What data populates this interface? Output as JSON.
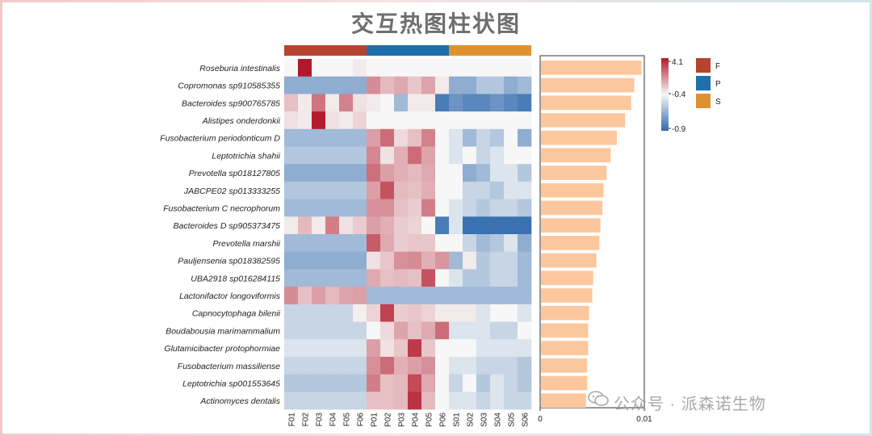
{
  "title": "交互热图柱状图",
  "watermark": "公众号 · 派森诺生物",
  "chart_data": {
    "type": "heatmap",
    "rows": [
      "Roseburia intestinalis",
      "Copromonas sp910585355",
      "Bacteroides sp900765785",
      "Alistipes onderdonkii",
      "Fusobacterium periodonticum D",
      "Leptotrichia shahii",
      "Prevotella sp018127805",
      "JABCPE02 sp013333255",
      "Fusobacterium C necrophorum",
      "Bacteroides D sp905373475",
      "Prevotella marshii",
      "Pauljensenia sp018382595",
      "UBA2918 sp016284115",
      "Lactonifactor longoviformis",
      "Capnocytophaga bilenii",
      "Boudabousia marimammalium",
      "Glutamicibacter protophormiae",
      "Fusobacterium massiliense",
      "Leptotrichia sp001553645",
      "Actinomyces dentalis"
    ],
    "columns": [
      "F01",
      "F02",
      "F03",
      "F04",
      "F05",
      "F06",
      "P01",
      "P02",
      "P03",
      "P04",
      "P05",
      "P06",
      "S01",
      "S02",
      "S03",
      "S04",
      "S05",
      "S06"
    ],
    "groups": [
      {
        "name": "F",
        "color": "#b5432f",
        "columns": [
          "F01",
          "F02",
          "F03",
          "F04",
          "F05",
          "F06"
        ]
      },
      {
        "name": "P",
        "color": "#1f6fab",
        "columns": [
          "P01",
          "P02",
          "P03",
          "P04",
          "P05",
          "P06"
        ]
      },
      {
        "name": "S",
        "color": "#e0912f",
        "columns": [
          "S01",
          "S02",
          "S03",
          "S04",
          "S05",
          "S06"
        ]
      }
    ],
    "color_scale": {
      "min": -0.9,
      "mid": -0.4,
      "max": 4.1,
      "low_color": "#2f6aad",
      "mid_color": "#f7f7f7",
      "high_color": "#b2182b",
      "ticks": [
        "4.1",
        "-0.4",
        "-0.9"
      ]
    },
    "values": [
      [
        -0.4,
        4.1,
        -0.4,
        -0.4,
        -0.4,
        -0.3,
        -0.4,
        -0.4,
        -0.4,
        -0.4,
        -0.4,
        -0.4,
        -0.4,
        -0.4,
        -0.4,
        -0.4,
        -0.4,
        -0.4
      ],
      [
        -0.65,
        -0.65,
        -0.65,
        -0.65,
        -0.65,
        -0.65,
        1.3,
        0.4,
        0.7,
        0.2,
        0.8,
        -0.3,
        -0.65,
        -0.65,
        -0.55,
        -0.55,
        -0.65,
        -0.6
      ],
      [
        0.3,
        -0.3,
        1.8,
        -0.3,
        1.5,
        -0.2,
        -0.3,
        -0.4,
        -0.6,
        -0.3,
        -0.3,
        -0.85,
        -0.75,
        -0.8,
        -0.8,
        -0.75,
        -0.8,
        -0.85
      ],
      [
        -0.2,
        -0.3,
        4.0,
        -0.2,
        -0.3,
        0.0,
        -0.4,
        -0.4,
        -0.4,
        -0.4,
        -0.4,
        -0.4,
        -0.4,
        -0.4,
        -0.4,
        -0.4,
        -0.4,
        -0.4
      ],
      [
        -0.6,
        -0.6,
        -0.6,
        -0.6,
        -0.6,
        -0.6,
        0.9,
        2.0,
        -0.1,
        0.3,
        1.5,
        -0.4,
        -0.45,
        -0.6,
        -0.5,
        -0.55,
        -0.4,
        -0.65
      ],
      [
        -0.55,
        -0.55,
        -0.55,
        -0.55,
        -0.55,
        -0.55,
        1.4,
        -0.2,
        0.6,
        2.0,
        0.8,
        -0.4,
        -0.45,
        -0.4,
        -0.5,
        -0.45,
        -0.4,
        -0.4
      ],
      [
        -0.65,
        -0.65,
        -0.65,
        -0.65,
        -0.65,
        -0.65,
        1.9,
        0.9,
        0.6,
        0.4,
        0.7,
        -0.4,
        -0.4,
        -0.65,
        -0.6,
        -0.45,
        -0.45,
        -0.55
      ],
      [
        -0.55,
        -0.55,
        -0.55,
        -0.55,
        -0.55,
        -0.55,
        0.9,
        2.6,
        0.4,
        0.3,
        0.6,
        -0.4,
        -0.4,
        -0.5,
        -0.5,
        -0.55,
        -0.45,
        -0.45
      ],
      [
        -0.6,
        -0.6,
        -0.6,
        -0.6,
        -0.6,
        -0.6,
        1.2,
        1.2,
        0.3,
        0.1,
        1.6,
        -0.4,
        -0.45,
        -0.5,
        -0.55,
        -0.5,
        -0.5,
        -0.55
      ],
      [
        -0.3,
        0.4,
        -0.3,
        1.6,
        -0.2,
        0.1,
        0.9,
        0.6,
        0.1,
        0.0,
        -0.4,
        -0.85,
        -0.45,
        -0.9,
        -0.9,
        -0.9,
        -0.9,
        -0.9
      ],
      [
        -0.6,
        -0.6,
        -0.6,
        -0.6,
        -0.6,
        -0.6,
        2.4,
        0.7,
        0.1,
        0.2,
        0.2,
        -0.4,
        -0.4,
        -0.5,
        -0.6,
        -0.55,
        -0.45,
        -0.65
      ],
      [
        -0.65,
        -0.65,
        -0.65,
        -0.65,
        -0.65,
        -0.65,
        -0.2,
        0.2,
        1.2,
        1.3,
        0.6,
        1.1,
        -0.6,
        -0.3,
        -0.55,
        -0.5,
        -0.5,
        -0.6
      ],
      [
        -0.6,
        -0.6,
        -0.6,
        -0.6,
        -0.6,
        -0.6,
        0.7,
        0.3,
        0.4,
        0.3,
        2.6,
        -0.4,
        -0.45,
        -0.55,
        -0.55,
        -0.5,
        -0.5,
        -0.6
      ],
      [
        1.3,
        0.3,
        0.9,
        0.4,
        0.8,
        0.9,
        -0.6,
        -0.6,
        -0.6,
        -0.6,
        -0.6,
        -0.6,
        -0.6,
        -0.6,
        -0.6,
        -0.6,
        -0.6,
        -0.6
      ],
      [
        -0.5,
        -0.5,
        -0.5,
        -0.5,
        -0.5,
        -0.35,
        0.0,
        3.0,
        0.1,
        0.2,
        0.0,
        -0.3,
        -0.3,
        -0.3,
        -0.45,
        -0.4,
        -0.4,
        -0.45
      ],
      [
        -0.5,
        -0.5,
        -0.5,
        -0.5,
        -0.5,
        -0.5,
        -0.4,
        -0.1,
        0.8,
        0.3,
        0.7,
        2.0,
        -0.45,
        -0.45,
        -0.45,
        -0.5,
        -0.5,
        -0.4
      ],
      [
        -0.45,
        -0.45,
        -0.45,
        -0.45,
        -0.45,
        -0.45,
        0.9,
        -0.2,
        0.2,
        3.2,
        0.2,
        -0.4,
        -0.4,
        -0.4,
        -0.45,
        -0.45,
        -0.45,
        -0.45
      ],
      [
        -0.5,
        -0.5,
        -0.5,
        -0.5,
        -0.5,
        -0.5,
        1.2,
        2.0,
        0.6,
        0.9,
        1.2,
        -0.4,
        -0.45,
        -0.45,
        -0.5,
        -0.5,
        -0.5,
        -0.55
      ],
      [
        -0.55,
        -0.55,
        -0.55,
        -0.55,
        -0.55,
        -0.55,
        1.6,
        0.3,
        0.4,
        2.8,
        0.7,
        -0.4,
        -0.5,
        -0.4,
        -0.55,
        -0.45,
        -0.5,
        -0.55
      ],
      [
        -0.5,
        -0.5,
        -0.5,
        -0.5,
        -0.5,
        -0.5,
        0.3,
        0.3,
        0.4,
        3.4,
        0.4,
        -0.4,
        -0.45,
        -0.45,
        -0.5,
        -0.45,
        -0.5,
        -0.5
      ]
    ],
    "bar": {
      "type": "bar",
      "orientation": "horizontal",
      "color": "#fdc79d",
      "xlim": [
        0,
        0.01
      ],
      "xticks": [
        "0",
        "0.01"
      ],
      "values": [
        0.0098,
        0.0091,
        0.0088,
        0.0082,
        0.0074,
        0.0068,
        0.0064,
        0.0061,
        0.006,
        0.0058,
        0.0057,
        0.0054,
        0.0051,
        0.005,
        0.0047,
        0.0046,
        0.0046,
        0.0045,
        0.0045,
        0.0044
      ]
    }
  }
}
